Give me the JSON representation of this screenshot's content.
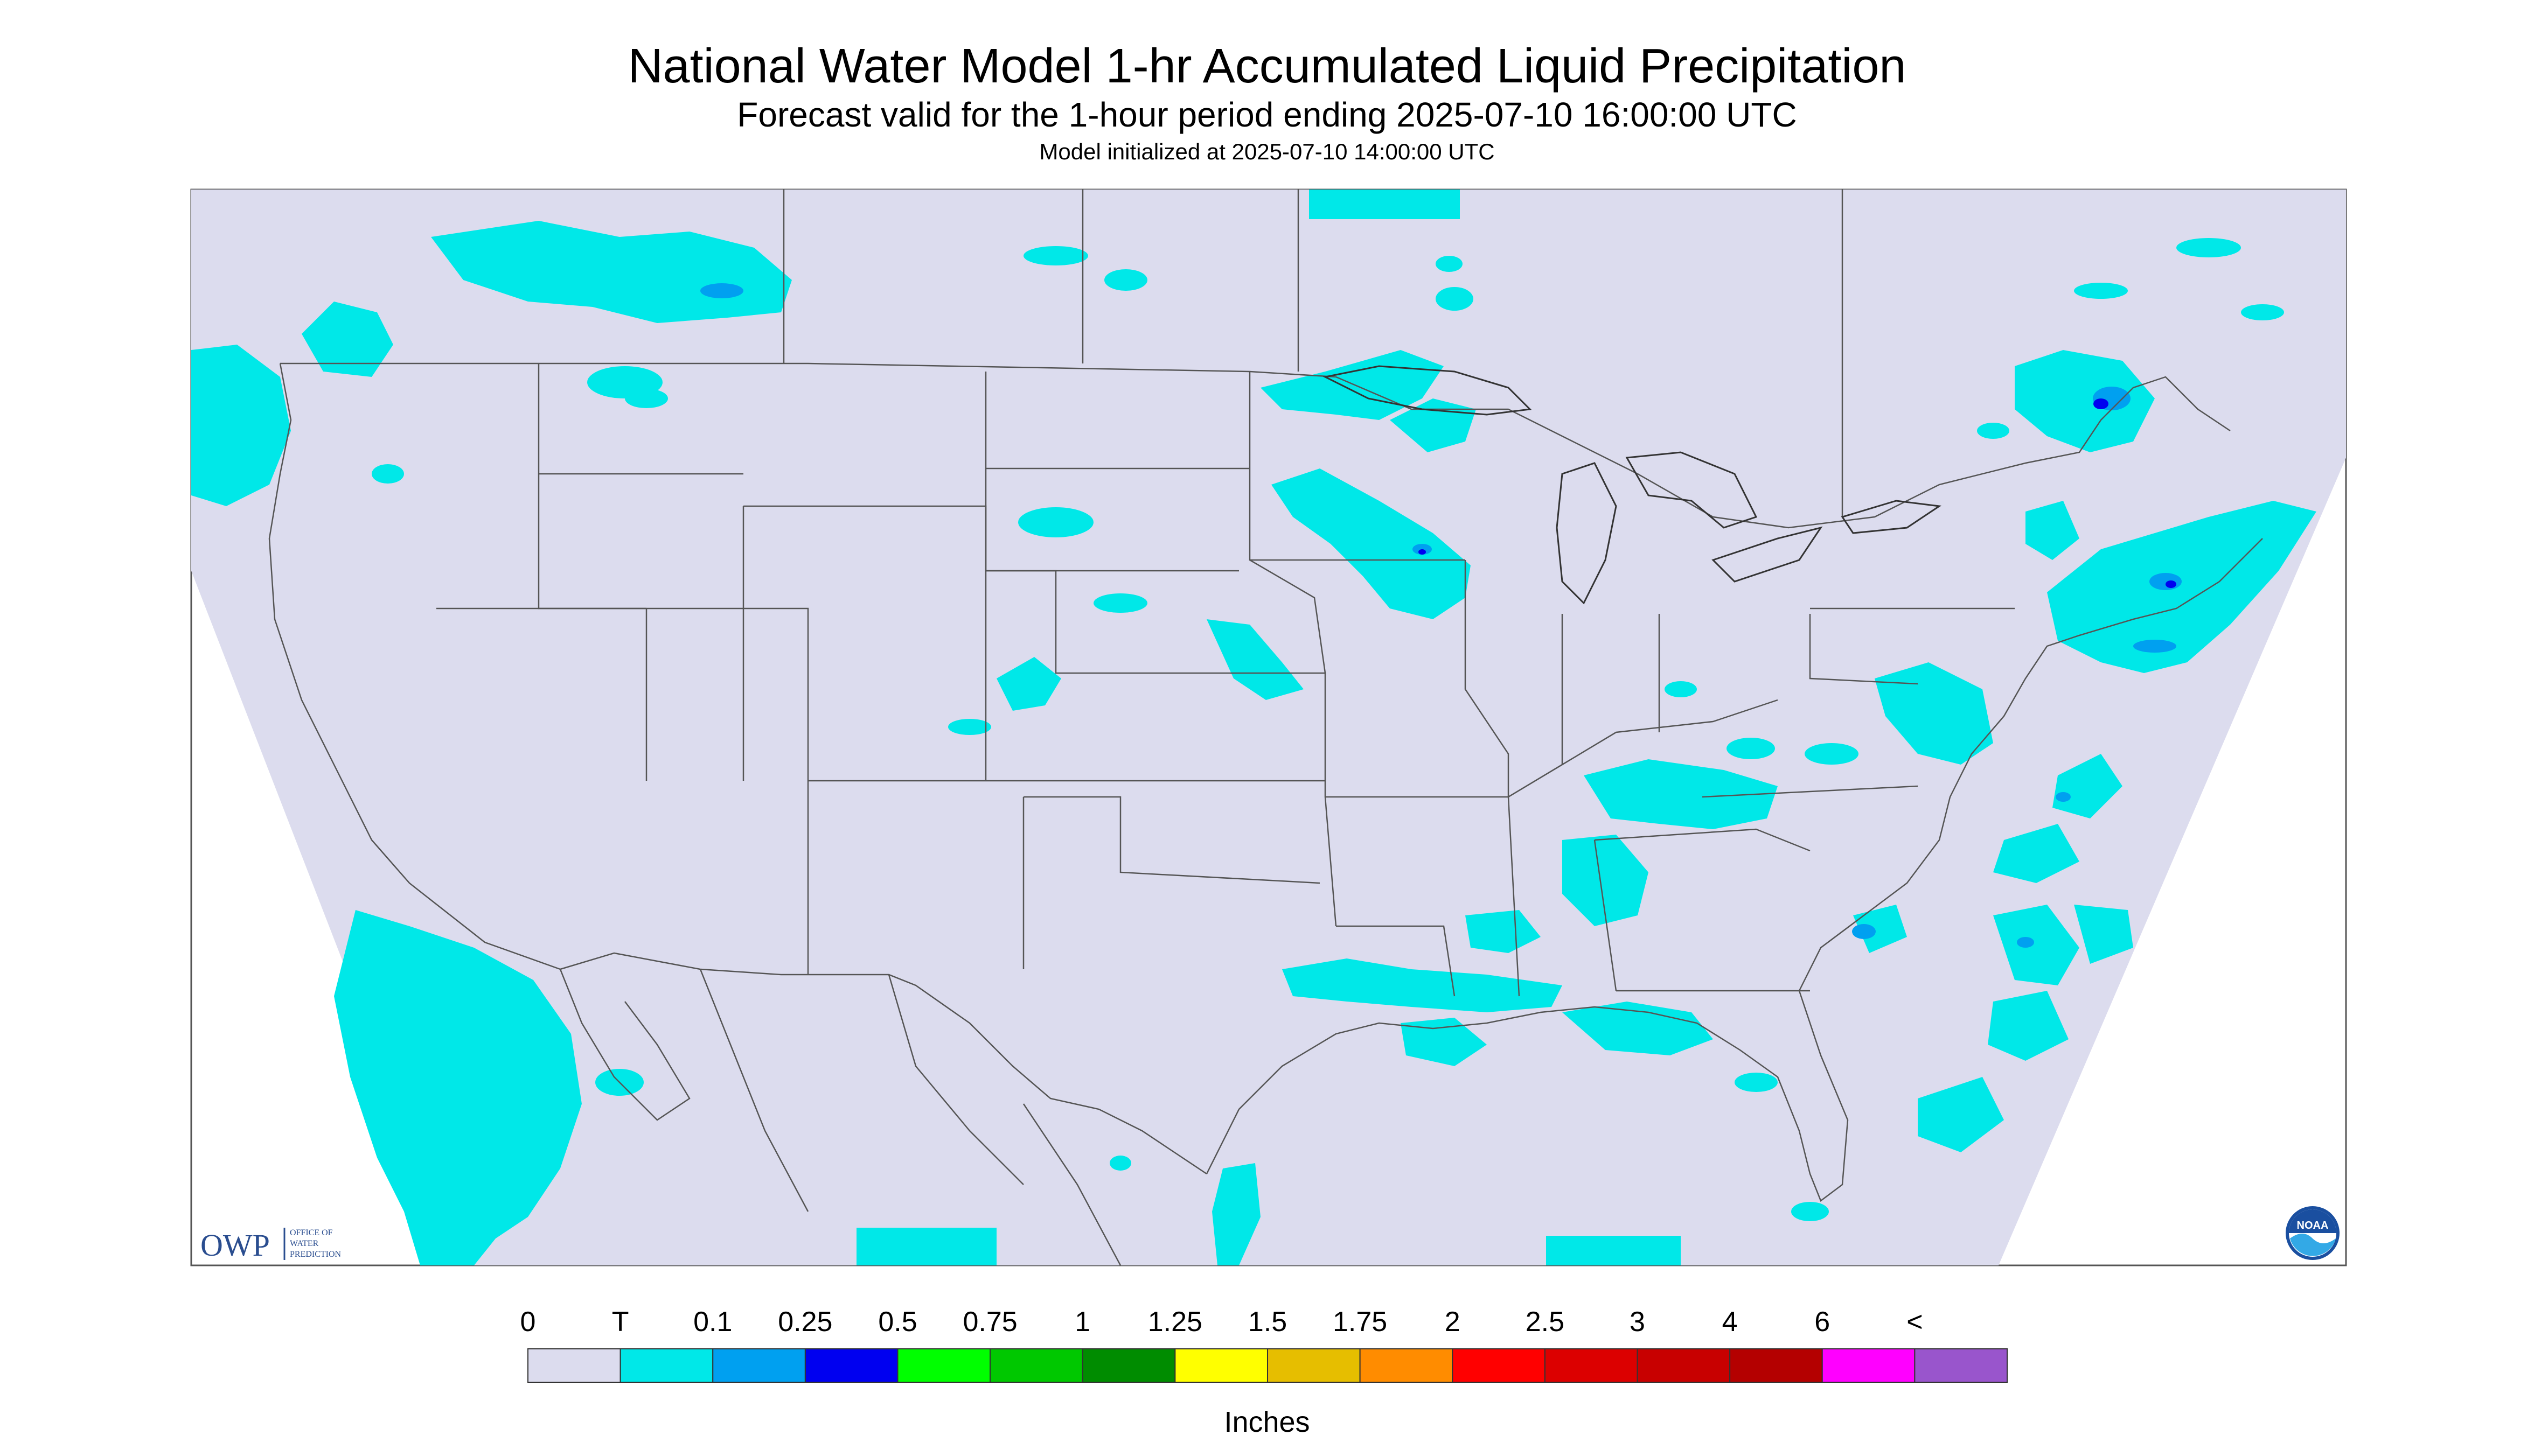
{
  "header": {
    "title": "National Water Model 1-hr Accumulated Liquid Precipitation",
    "subtitle": "Forecast valid for the 1-hour period ending 2025-07-10 16:00:00 UTC",
    "init": "Model initialized at 2025-07-10 14:00:00 UTC"
  },
  "logos": {
    "owp": {
      "abbr": "OWP",
      "lines": [
        "OFFICE OF",
        "WATER",
        "PREDICTION"
      ]
    },
    "noaa": {
      "text": "NOAA"
    }
  },
  "colors": {
    "background_none": "#dcdcee",
    "map_land_outline": "#555555",
    "trace": "#00e8e8"
  },
  "legend": {
    "units": "Inches",
    "ticks": [
      "0",
      "T",
      "0.1",
      "0.25",
      "0.5",
      "0.75",
      "1",
      "1.25",
      "1.5",
      "1.75",
      "2",
      "2.5",
      "3",
      "4",
      "6",
      "<"
    ],
    "colors": [
      "#dcdcee",
      "#00e8e8",
      "#00a0f0",
      "#0000f0",
      "#00ff00",
      "#00c800",
      "#008c00",
      "#ffff00",
      "#e6be00",
      "#ff8c00",
      "#ff0000",
      "#dc0000",
      "#c80000",
      "#b40000",
      "#ff00ff",
      "#9955cc"
    ]
  }
}
